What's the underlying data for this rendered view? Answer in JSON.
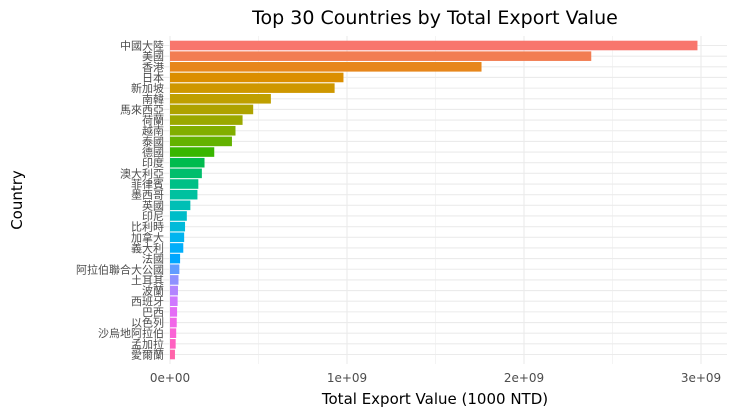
{
  "chart_data": {
    "type": "bar",
    "orientation": "horizontal",
    "title": "Top 30 Countries by Total Export Value",
    "xlabel": "Total Export Value (1000 NTD)",
    "ylabel": "Country",
    "xlim": [
      0,
      3000000000
    ],
    "x_ticks": [
      {
        "value": 0,
        "label": "0e+00"
      },
      {
        "value": 1000000000,
        "label": "1e+09"
      },
      {
        "value": 2000000000,
        "label": "2e+09"
      },
      {
        "value": 3000000000,
        "label": "3e+09"
      }
    ],
    "grid": true,
    "legend": "none",
    "categories": [
      "中國大陸",
      "美國",
      "香港",
      "日本",
      "新加坡",
      "南韓",
      "馬來西亞",
      "荷蘭",
      "越南",
      "泰國",
      "德國",
      "印度",
      "澳大利亞",
      "菲律賓",
      "墨西哥",
      "英國",
      "印尼",
      "比利時",
      "加拿大",
      "義大利",
      "法國",
      "阿拉伯聯合大公國",
      "土耳其",
      "波蘭",
      "西班牙",
      "巴西",
      "以色列",
      "沙烏地阿拉伯",
      "孟加拉",
      "愛爾蘭"
    ],
    "values": [
      2980000000,
      2380000000,
      1760000000,
      980000000,
      930000000,
      570000000,
      470000000,
      410000000,
      370000000,
      350000000,
      250000000,
      195000000,
      180000000,
      160000000,
      155000000,
      115000000,
      95000000,
      85000000,
      80000000,
      75000000,
      57000000,
      53000000,
      48000000,
      45000000,
      43000000,
      40000000,
      38000000,
      35000000,
      32000000,
      28000000
    ],
    "colors": [
      "#F8766D",
      "#F27D52",
      "#E7861B",
      "#DB8E00",
      "#CE9700",
      "#BF9F00",
      "#AEA200",
      "#9AA800",
      "#81AE00",
      "#64B200",
      "#39B600",
      "#00BB4E",
      "#00BE6C",
      "#00C086",
      "#00C19F",
      "#00BFB5",
      "#00BDC8",
      "#00BAD9",
      "#00B4EF",
      "#00AEFA",
      "#00A6FF",
      "#619CFF",
      "#8F91FF",
      "#B385FF",
      "#CF78FF",
      "#E46CF6",
      "#F166E8",
      "#FA62D5",
      "#FF61C1",
      "#FF64AA"
    ]
  }
}
